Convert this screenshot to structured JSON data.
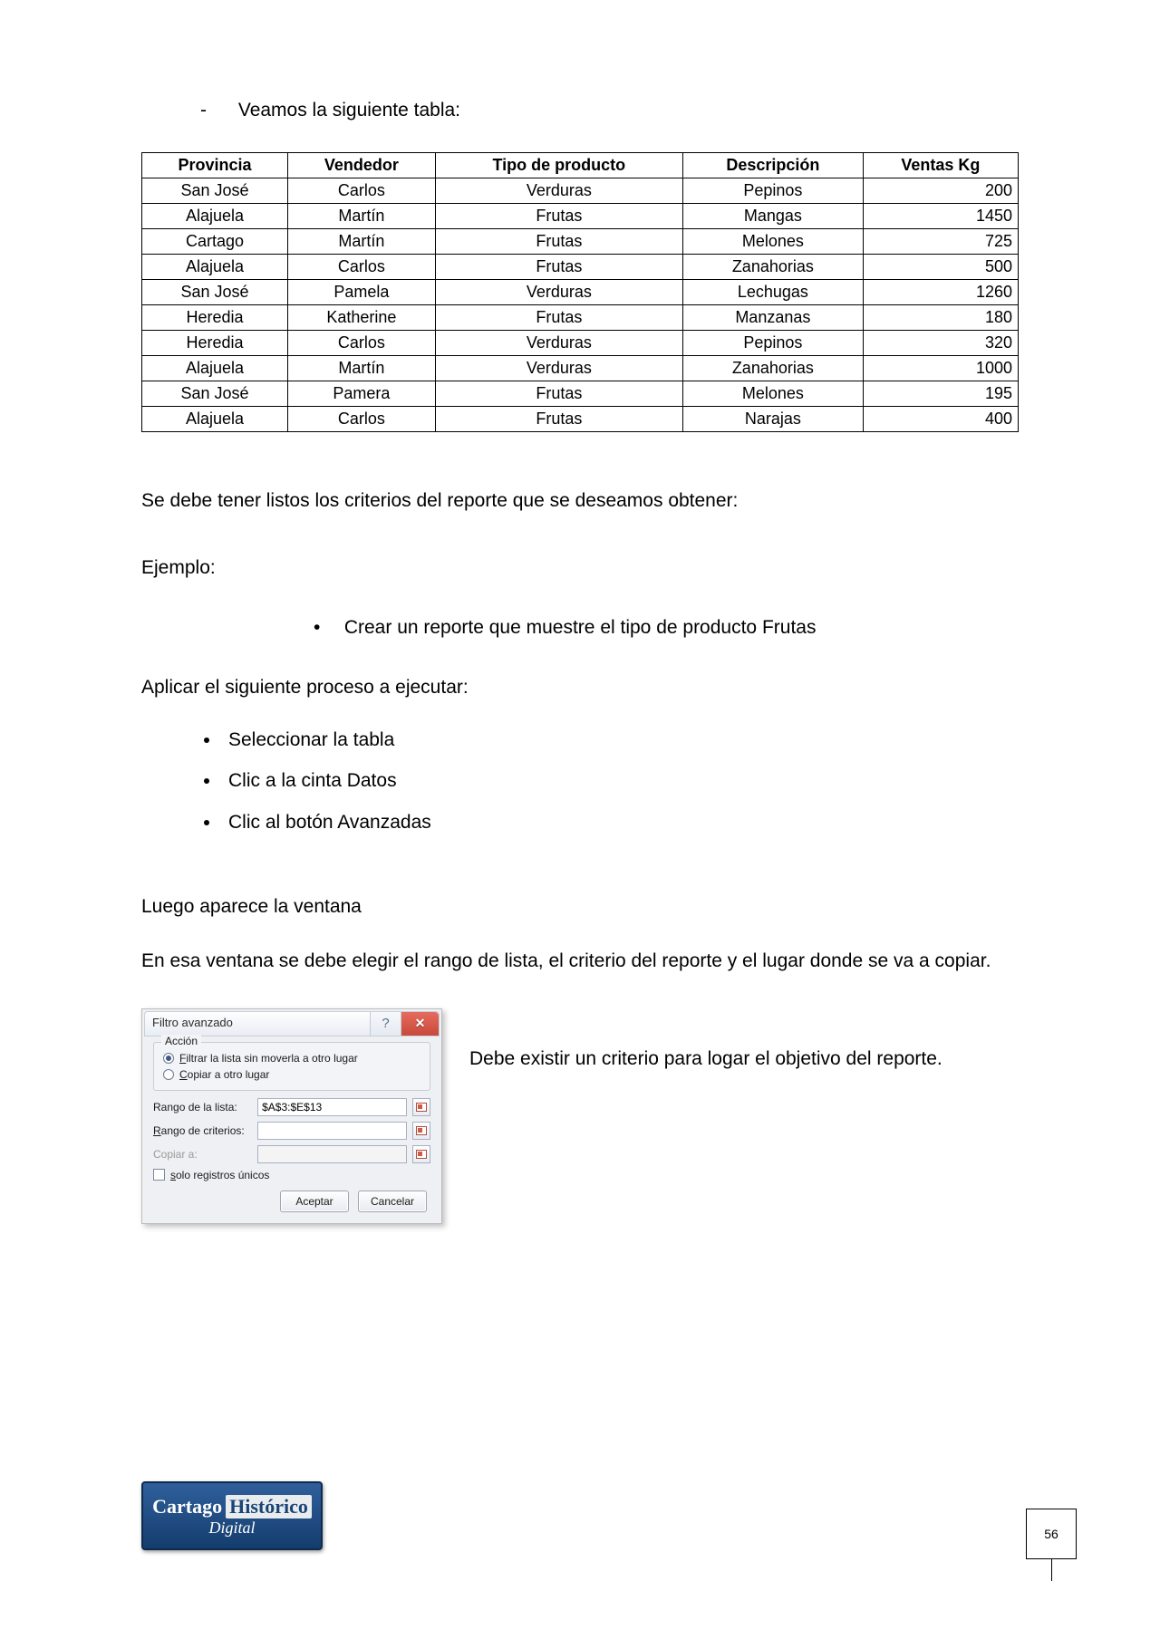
{
  "intro_line": "Veamos la siguiente tabla:",
  "table": {
    "headers": [
      "Provincia",
      "Vendedor",
      "Tipo de producto",
      "Descripción",
      "Ventas Kg"
    ],
    "rows": [
      [
        "San José",
        "Carlos",
        "Verduras",
        "Pepinos",
        "200"
      ],
      [
        "Alajuela",
        "Martín",
        "Frutas",
        "Mangas",
        "1450"
      ],
      [
        "Cartago",
        "Martín",
        "Frutas",
        "Melones",
        "725"
      ],
      [
        "Alajuela",
        "Carlos",
        "Frutas",
        "Zanahorias",
        "500"
      ],
      [
        "San José",
        "Pamela",
        "Verduras",
        "Lechugas",
        "1260"
      ],
      [
        "Heredia",
        "Katherine",
        "Frutas",
        "Manzanas",
        "180"
      ],
      [
        "Heredia",
        "Carlos",
        "Verduras",
        "Pepinos",
        "320"
      ],
      [
        "Alajuela",
        "Martín",
        "Verduras",
        "Zanahorias",
        "1000"
      ],
      [
        "San José",
        "Pamera",
        "Frutas",
        "Melones",
        "195"
      ],
      [
        "Alajuela",
        "Carlos",
        "Frutas",
        "Narajas",
        "400"
      ]
    ]
  },
  "p_criterios": "Se debe tener listos los criterios del reporte que se deseamos obtener:",
  "p_ejemplo": "Ejemplo:",
  "bullet_reporte": "Crear un reporte que muestre el tipo de producto Frutas",
  "p_aplicar": "Aplicar el siguiente proceso a ejecutar:",
  "steps": [
    "Seleccionar la tabla",
    "Clic a la cinta Datos",
    "Clic al botón Avanzadas"
  ],
  "p_luego": "Luego aparece la ventana",
  "p_ventana": "En esa ventana se debe elegir el rango de lista, el criterio del reporte y el lugar donde se va a copiar.",
  "p_side": "Debe existir un criterio para logar el objetivo del reporte.",
  "dialog": {
    "title": "Filtro avanzado",
    "group_accion": "Acción",
    "radio1_pre": "F",
    "radio1_rest": "iltrar la lista sin moverla a otro lugar",
    "radio2_pre": "C",
    "radio2_rest": "opiar a otro lugar",
    "label_rango_lista": "Rango de la lista:",
    "value_rango_lista": "$A$3:$E$13",
    "label_rango_crit_pre": "R",
    "label_rango_crit_rest": "ango de criterios:",
    "label_copiar": "Copiar a:",
    "chk_pre": "s",
    "chk_rest": "olo registros únicos",
    "btn_aceptar": "Aceptar",
    "btn_cancelar": "Cancelar"
  },
  "logo": {
    "l1": "Cartago",
    "l2": "Histórico",
    "sub": "Digital"
  },
  "page_number": "56",
  "colors": {
    "close_bg": "#c8493b",
    "dialog_bg": "#eef0f3",
    "logo_grad_top": "#2f5f9b",
    "logo_grad_bottom": "#143d6e"
  }
}
